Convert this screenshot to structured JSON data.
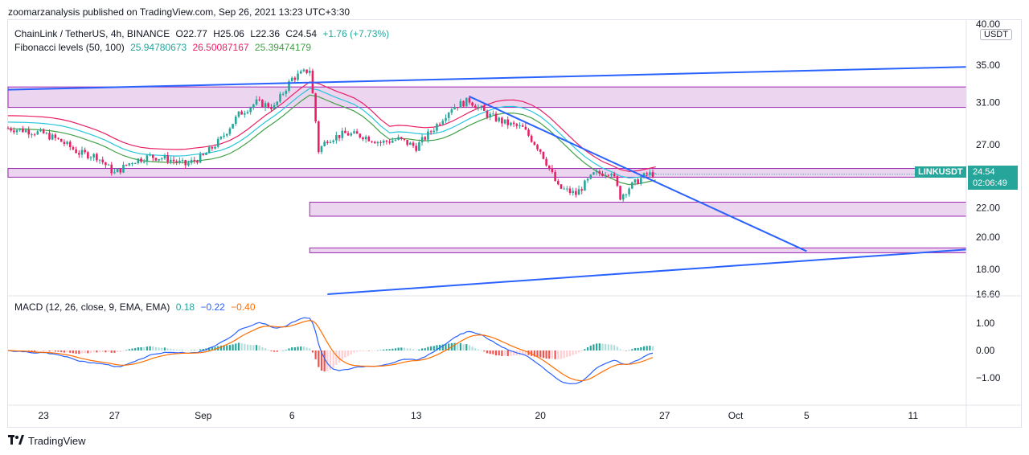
{
  "header": {
    "publisher": "zoomarzanalysis published on TradingView.com, Sep 26, 2021 13:23 UTC+3:30"
  },
  "legend": {
    "symbol": "ChainLink / TetherUS, 4h, BINANCE",
    "open": "O22.77",
    "high": "H25.06",
    "low": "L22.36",
    "close": "C24.54",
    "change": "+1.76 (+7.73%)",
    "fib_label": "Fibonacci levels (50, 100)",
    "fib_values": [
      "25.94780673",
      "26.50087167",
      "25.39474179"
    ],
    "macd_label": "MACD (12, 26, close, 9, EMA, EMA)",
    "macd_values": [
      "0.18",
      "−0.22",
      "−0.40"
    ]
  },
  "price_axis": {
    "currency": "USDT",
    "symbol_tag": "LINKUSDT",
    "last_price": "24.54",
    "countdown": "02:06:49"
  },
  "footer": {
    "brand": "TradingView",
    "logo_icon": "tradingview-logo-icon"
  },
  "colors": {
    "up": "#26a69a",
    "down": "#e91e63",
    "zone": "#e1bee7",
    "trendline": "#2962ff",
    "macd": "#2962ff",
    "signal": "#ff6d00",
    "fib_mid": "#26c6da",
    "fib_high": "#e91e63",
    "fib_low": "#43a047"
  },
  "chart_data": {
    "type": "candlestick",
    "title": "ChainLink / TetherUS, 4h, BINANCE",
    "x_tick_labels": [
      "23",
      "27",
      "Sep",
      "6",
      "13",
      "20",
      "27",
      "Oct",
      "5",
      "11"
    ],
    "x_ticks_date": [
      "2021-08-23",
      "2021-08-27",
      "2021-09-01",
      "2021-09-06",
      "2021-09-13",
      "2021-09-20",
      "2021-09-27",
      "2021-10-01",
      "2021-10-05",
      "2021-10-11"
    ],
    "y_tick_labels": [
      "40.00",
      "35.00",
      "31.00",
      "27.00",
      "22.00",
      "20.00",
      "18.00",
      "16.60"
    ],
    "y_axis_scale": "log",
    "ylim": [
      16.6,
      40
    ],
    "close_path": [
      [
        "2021-08-21",
        28.5
      ],
      [
        "2021-08-22",
        28.3
      ],
      [
        "2021-08-23",
        28.0
      ],
      [
        "2021-08-24",
        27.3
      ],
      [
        "2021-08-25",
        26.3
      ],
      [
        "2021-08-26",
        26.0
      ],
      [
        "2021-08-27",
        24.6
      ],
      [
        "2021-08-28",
        25.6
      ],
      [
        "2021-08-29",
        26.0
      ],
      [
        "2021-08-30",
        25.8
      ],
      [
        "2021-08-31",
        25.3
      ],
      [
        "2021-09-01",
        26.0
      ],
      [
        "2021-09-02",
        27.5
      ],
      [
        "2021-09-03",
        29.8
      ],
      [
        "2021-09-04",
        31.0
      ],
      [
        "2021-09-05",
        30.5
      ],
      [
        "2021-09-06",
        33.5
      ],
      [
        "2021-09-07",
        34.5
      ],
      [
        "2021-09-07T12",
        26.5
      ],
      [
        "2021-09-08",
        27.5
      ],
      [
        "2021-09-09",
        28.0
      ],
      [
        "2021-09-10",
        27.8
      ],
      [
        "2021-09-11",
        27.2
      ],
      [
        "2021-09-12",
        27.5
      ],
      [
        "2021-09-13",
        26.8
      ],
      [
        "2021-09-14",
        28.5
      ],
      [
        "2021-09-15",
        30.5
      ],
      [
        "2021-09-16",
        31.2
      ],
      [
        "2021-09-17",
        29.8
      ],
      [
        "2021-09-18",
        29.0
      ],
      [
        "2021-09-19",
        28.5
      ],
      [
        "2021-09-20",
        26.5
      ],
      [
        "2021-09-21",
        23.5
      ],
      [
        "2021-09-22",
        23.0
      ],
      [
        "2021-09-23",
        24.5
      ],
      [
        "2021-09-24",
        24.8
      ],
      [
        "2021-09-24T12",
        22.8
      ],
      [
        "2021-09-25",
        23.5
      ],
      [
        "2021-09-26",
        24.54
      ]
    ],
    "zones": [
      {
        "from": "2021-08-21",
        "to": "2021-10-14",
        "low": 30.5,
        "high": 32.6
      },
      {
        "from": "2021-08-21",
        "to": "2021-10-14",
        "low": 24.3,
        "high": 25.0
      },
      {
        "from": "2021-09-07",
        "to": "2021-10-14",
        "low": 21.4,
        "high": 22.4
      },
      {
        "from": "2021-09-07",
        "to": "2021-10-14",
        "low": 19.0,
        "high": 19.3
      }
    ],
    "trendlines": [
      {
        "from": [
          "2021-08-21",
          32.3
        ],
        "to": [
          "2021-10-14",
          34.8
        ]
      },
      {
        "from": [
          "2021-09-16",
          31.6
        ],
        "to": [
          "2021-10-05",
          19.1
        ]
      },
      {
        "from": [
          "2021-09-08",
          16.6
        ],
        "to": [
          "2021-10-14",
          19.2
        ]
      }
    ],
    "fibonacci": {
      "high": 26.50087167,
      "mid": 25.94780673,
      "low": 25.39474179
    },
    "macd": {
      "fast": 12,
      "slow": 26,
      "signal": 9,
      "last": {
        "histogram": 0.18,
        "macd": -0.22,
        "signal": -0.4
      },
      "ylim": [
        -1.6,
        1.6
      ],
      "y_tick_labels": [
        "1.00",
        "0.00",
        "−1.00"
      ]
    }
  }
}
